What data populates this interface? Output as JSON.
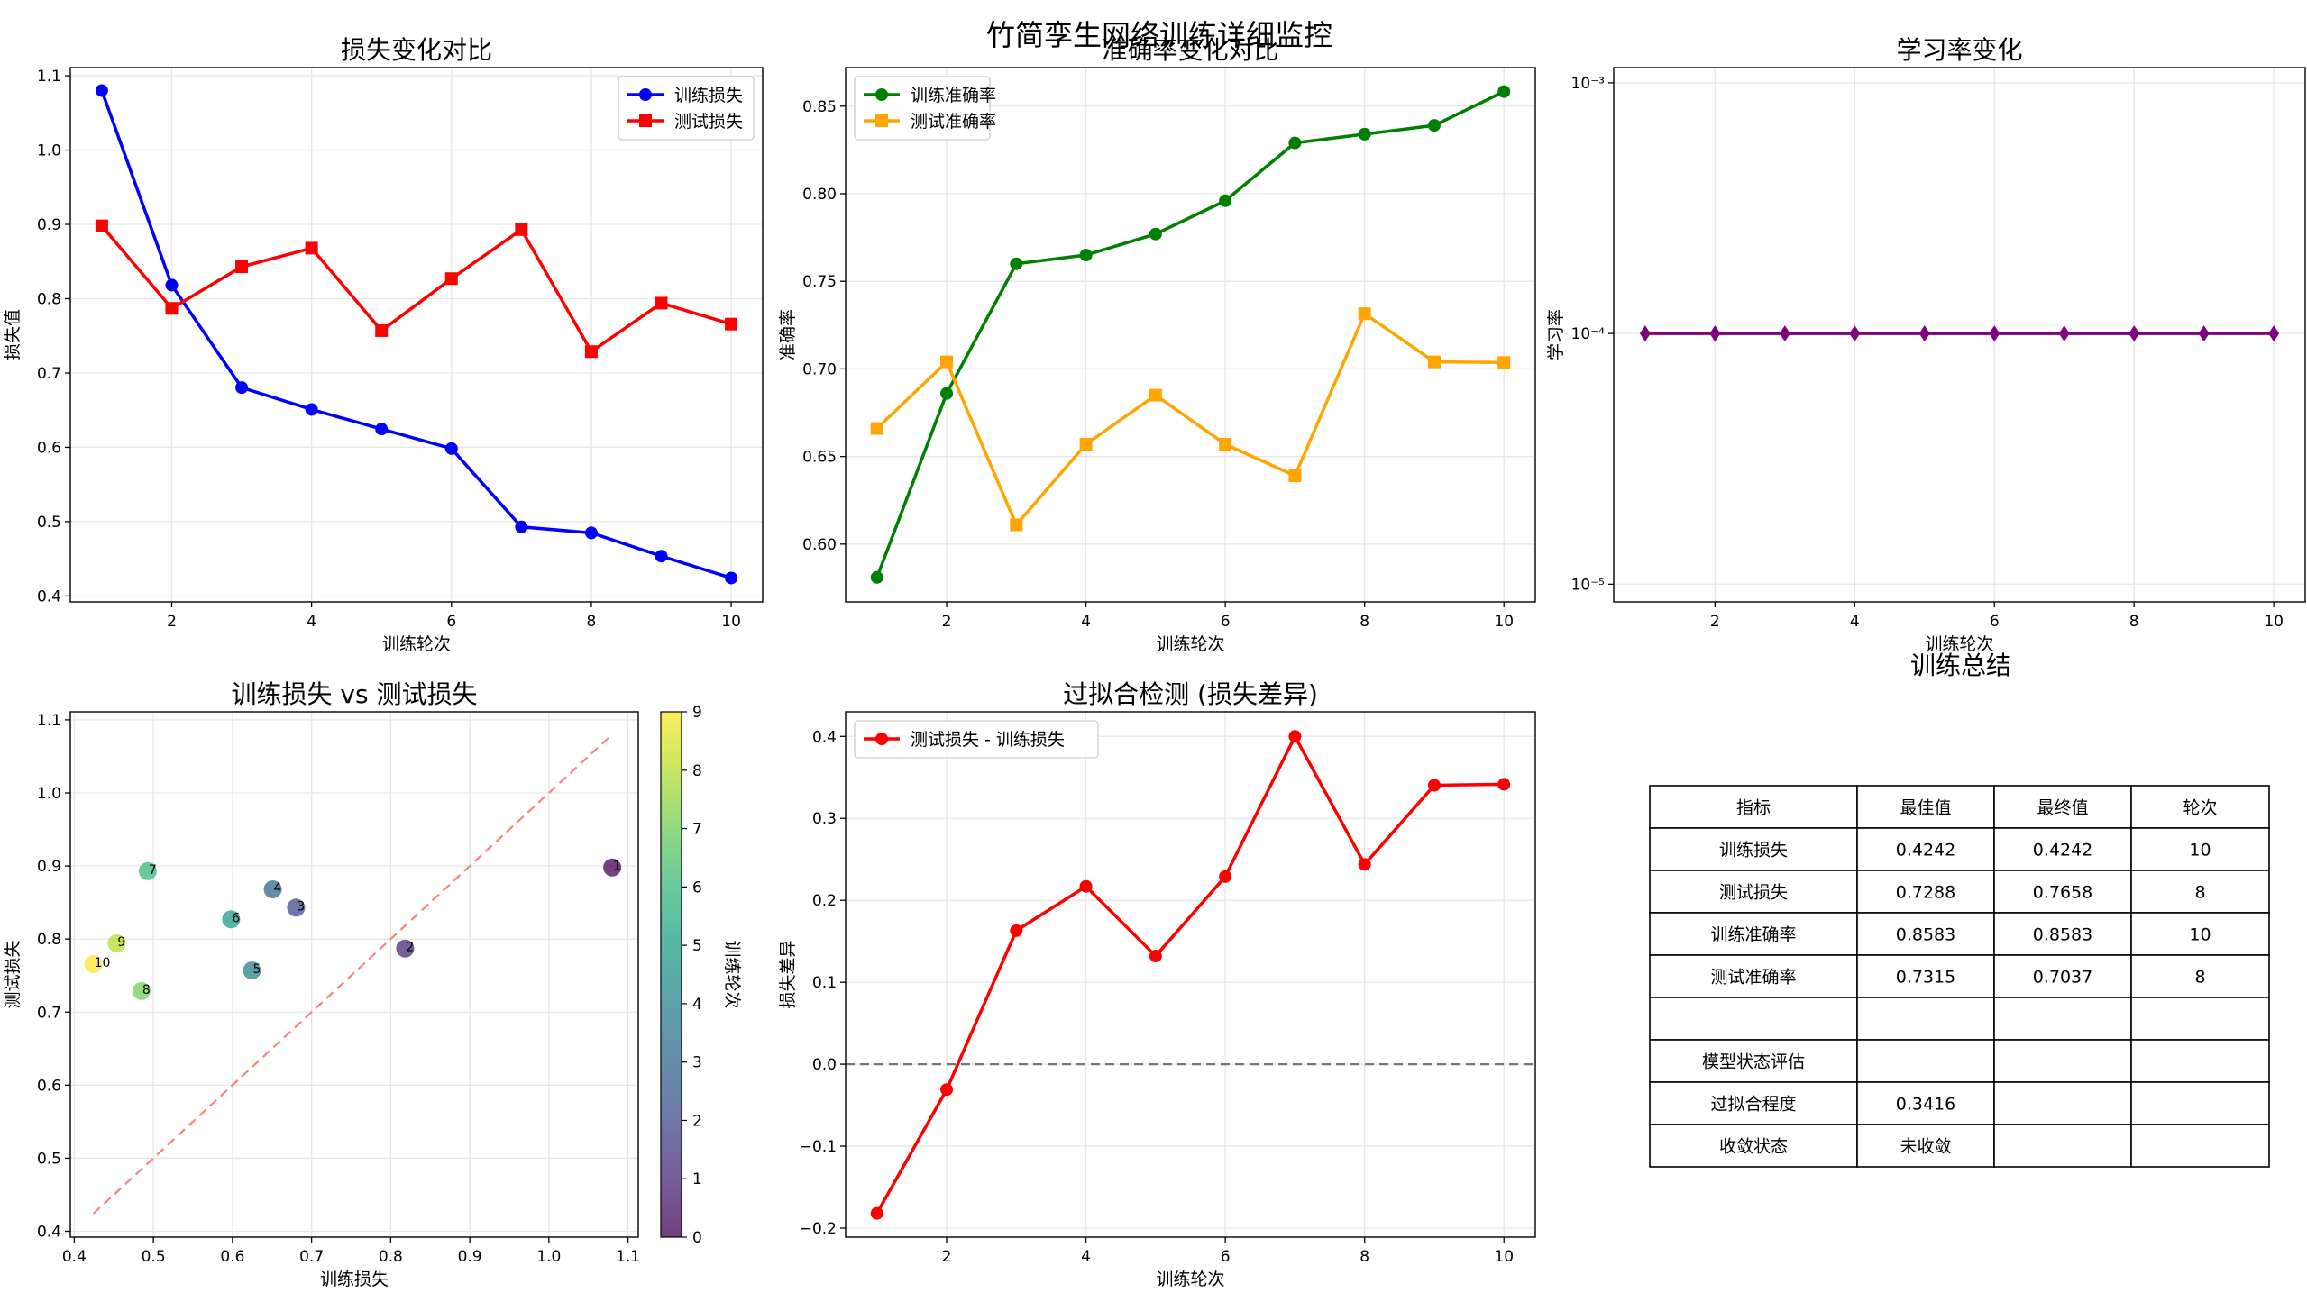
{
  "suptitle": "竹简孪生网络训练详细监控",
  "colors": {
    "train_loss": "#0000ff",
    "test_loss": "#ff0000",
    "train_acc": "#008000",
    "test_acc": "#ffa500",
    "lr": "#800080",
    "diff": "#ff0000",
    "diag": "#ff8080",
    "zero": "#777777",
    "grid": "#e6e6e6"
  },
  "chart_data": [
    {
      "id": "loss",
      "type": "line",
      "title": "损失变化对比",
      "xlabel": "训练轮次",
      "ylabel": "损失值",
      "xlim": [
        0.55,
        10.45
      ],
      "ylim": [
        0.392,
        1.111
      ],
      "xticks": [
        2,
        4,
        6,
        8,
        10
      ],
      "yticks": [
        0.4,
        0.5,
        0.6,
        0.7,
        0.8,
        0.9,
        1.0,
        1.1
      ],
      "ytick_labels": [
        "0.4",
        "0.5",
        "0.6",
        "0.7",
        "0.8",
        "0.9",
        "1.0",
        "1.1"
      ],
      "grid": true,
      "legend": "upper right",
      "x": [
        1,
        2,
        3,
        4,
        5,
        6,
        7,
        8,
        9,
        10
      ],
      "series": [
        {
          "name": "训练损失",
          "marker": "circle",
          "color": "#0000ff",
          "values": [
            1.0801,
            0.8183,
            0.6804,
            0.6509,
            0.6246,
            0.5983,
            0.4929,
            0.4849,
            0.4536,
            0.4242
          ]
        },
        {
          "name": "测试损失",
          "marker": "square",
          "color": "#ff0000",
          "values": [
            0.898,
            0.787,
            0.843,
            0.868,
            0.757,
            0.827,
            0.893,
            0.7288,
            0.794,
            0.7658
          ]
        }
      ]
    },
    {
      "id": "acc",
      "type": "line",
      "title": "准确率变化对比",
      "xlabel": "训练轮次",
      "ylabel": "准确率",
      "xlim": [
        0.55,
        10.45
      ],
      "ylim": [
        0.567,
        0.872
      ],
      "xticks": [
        2,
        4,
        6,
        8,
        10
      ],
      "yticks": [
        0.6,
        0.65,
        0.7,
        0.75,
        0.8,
        0.85
      ],
      "ytick_labels": [
        "0.60",
        "0.65",
        "0.70",
        "0.75",
        "0.80",
        "0.85"
      ],
      "grid": true,
      "legend": "upper left",
      "x": [
        1,
        2,
        3,
        4,
        5,
        6,
        7,
        8,
        9,
        10
      ],
      "series": [
        {
          "name": "训练准确率",
          "marker": "circle",
          "color": "#008000",
          "values": [
            0.581,
            0.686,
            0.76,
            0.765,
            0.777,
            0.796,
            0.829,
            0.834,
            0.839,
            0.8583
          ]
        },
        {
          "name": "测试准确率",
          "marker": "square",
          "color": "#ffa500",
          "values": [
            0.666,
            0.704,
            0.611,
            0.657,
            0.685,
            0.657,
            0.639,
            0.7315,
            0.704,
            0.7037
          ]
        }
      ]
    },
    {
      "id": "lr",
      "type": "line",
      "title": "学习率变化",
      "xlabel": "训练轮次",
      "ylabel": "学习率",
      "log_scale_y": true,
      "xlim": [
        0.55,
        10.45
      ],
      "ylim": [
        8.5e-06,
        0.00115
      ],
      "xticks": [
        2,
        4,
        6,
        8,
        10
      ],
      "yticks": [
        1e-05,
        0.0001,
        0.001
      ],
      "ytick_labels": [
        "10⁻⁵",
        "10⁻⁴",
        "10⁻³"
      ],
      "grid": true,
      "x": [
        1,
        2,
        3,
        4,
        5,
        6,
        7,
        8,
        9,
        10
      ],
      "series": [
        {
          "marker": "diamond",
          "color": "#800080",
          "values": [
            0.0001,
            0.0001,
            0.0001,
            0.0001,
            0.0001,
            0.0001,
            0.0001,
            0.0001,
            0.0001,
            0.0001
          ]
        }
      ]
    },
    {
      "id": "scatter",
      "type": "scatter",
      "title": "训练损失 vs 测试损失",
      "xlabel": "训练损失",
      "ylabel": "测试损失",
      "xlim": [
        0.395,
        1.113
      ],
      "ylim": [
        0.392,
        1.111
      ],
      "xticks": [
        0.4,
        0.5,
        0.6,
        0.7,
        0.8,
        0.9,
        1.0,
        1.1
      ],
      "xtick_labels": [
        "0.4",
        "0.5",
        "0.6",
        "0.7",
        "0.8",
        "0.9",
        "1.0",
        "1.1"
      ],
      "yticks": [
        0.4,
        0.5,
        0.6,
        0.7,
        0.8,
        0.9,
        1.0,
        1.1
      ],
      "ytick_labels": [
        "0.4",
        "0.5",
        "0.6",
        "0.7",
        "0.8",
        "0.9",
        "1.0",
        "1.1"
      ],
      "grid": true,
      "colorbar_label": "训练轮次",
      "colorbar_range": [
        0,
        9
      ],
      "colorbar_ticks": [
        0,
        1,
        2,
        3,
        4,
        5,
        6,
        7,
        8,
        9
      ],
      "diagonal": [
        [
          0.4242,
          0.4242
        ],
        [
          1.0801,
          1.0801
        ]
      ],
      "points": [
        {
          "x": 1.0801,
          "y": 0.898,
          "label": "1",
          "c": 0
        },
        {
          "x": 0.8183,
          "y": 0.787,
          "label": "2",
          "c": 1
        },
        {
          "x": 0.6804,
          "y": 0.843,
          "label": "3",
          "c": 2
        },
        {
          "x": 0.6509,
          "y": 0.868,
          "label": "4",
          "c": 3
        },
        {
          "x": 0.6246,
          "y": 0.757,
          "label": "5",
          "c": 4
        },
        {
          "x": 0.5983,
          "y": 0.827,
          "label": "6",
          "c": 5
        },
        {
          "x": 0.4929,
          "y": 0.893,
          "label": "7",
          "c": 6
        },
        {
          "x": 0.4849,
          "y": 0.7288,
          "label": "8",
          "c": 7
        },
        {
          "x": 0.4536,
          "y": 0.794,
          "label": "9",
          "c": 8
        },
        {
          "x": 0.4242,
          "y": 0.7658,
          "label": "10",
          "c": 9
        }
      ]
    },
    {
      "id": "diff",
      "type": "line",
      "title": "过拟合检测 (损失差异)",
      "xlabel": "训练轮次",
      "ylabel": "损失差异",
      "xlim": [
        0.55,
        10.45
      ],
      "ylim": [
        -0.211,
        0.43
      ],
      "xticks": [
        2,
        4,
        6,
        8,
        10
      ],
      "yticks": [
        -0.2,
        -0.1,
        0.0,
        0.1,
        0.2,
        0.3,
        0.4
      ],
      "ytick_labels": [
        "−0.2",
        "−0.1",
        "0.0",
        "0.1",
        "0.2",
        "0.3",
        "0.4"
      ],
      "grid": true,
      "legend": "upper left",
      "zero_line": 0,
      "x": [
        1,
        2,
        3,
        4,
        5,
        6,
        7,
        8,
        9,
        10
      ],
      "series": [
        {
          "name": "测试损失 - 训练损失",
          "marker": "circle",
          "color": "#ff0000",
          "values": [
            -0.182,
            -0.031,
            0.163,
            0.217,
            0.132,
            0.229,
            0.4,
            0.2439,
            0.3404,
            0.3416
          ]
        }
      ]
    },
    {
      "id": "summary",
      "type": "table",
      "title": "训练总结",
      "columns": [
        "指标",
        "最佳值",
        "最终值",
        "轮次"
      ],
      "rows": [
        [
          "训练损失",
          "0.4242",
          "0.4242",
          "10"
        ],
        [
          "测试损失",
          "0.7288",
          "0.7658",
          "8"
        ],
        [
          "训练准确率",
          "0.8583",
          "0.8583",
          "10"
        ],
        [
          "测试准确率",
          "0.7315",
          "0.7037",
          "8"
        ],
        [
          "",
          "",
          "",
          ""
        ],
        [
          "模型状态评估",
          "",
          "",
          ""
        ],
        [
          "过拟合程度",
          "0.3416",
          "",
          ""
        ],
        [
          "收敛状态",
          "未收敛",
          "",
          ""
        ]
      ]
    }
  ]
}
